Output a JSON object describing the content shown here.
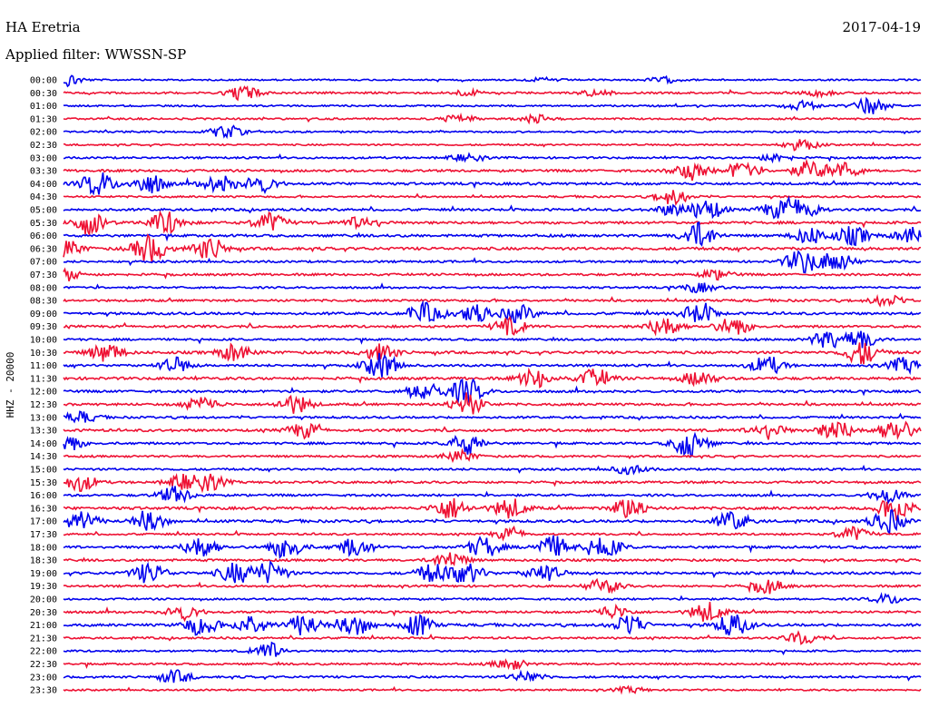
{
  "header": {
    "station": "HA Eretria",
    "date": "2017-04-19",
    "filter": "Applied filter: WWSSN-SP"
  },
  "chart_data": {
    "type": "line",
    "title": "HA Eretria",
    "subtitle": "Applied filter: WWSSN-SP",
    "date": "2017-04-19",
    "ylabel": "HHZ - 20000",
    "xlabel": "",
    "colors": [
      "#0000ee",
      "#ee1133"
    ],
    "rows": [
      {
        "label": "00:00",
        "activity": 0.15,
        "bursts": [
          [
            0.0,
            0.9
          ],
          [
            0.56,
            0.2
          ],
          [
            0.7,
            0.3
          ]
        ]
      },
      {
        "label": "00:30",
        "activity": 0.3,
        "bursts": [
          [
            0.21,
            0.8
          ],
          [
            0.47,
            0.3
          ],
          [
            0.62,
            0.3
          ],
          [
            0.88,
            0.3
          ]
        ]
      },
      {
        "label": "01:00",
        "activity": 0.2,
        "bursts": [
          [
            0.86,
            0.5
          ],
          [
            0.94,
            0.9
          ]
        ]
      },
      {
        "label": "01:30",
        "activity": 0.25,
        "bursts": [
          [
            0.46,
            0.4
          ],
          [
            0.55,
            0.4
          ]
        ]
      },
      {
        "label": "02:00",
        "activity": 0.2,
        "bursts": [
          [
            0.19,
            0.7
          ]
        ]
      },
      {
        "label": "02:30",
        "activity": 0.2,
        "bursts": [
          [
            0.86,
            0.6
          ]
        ]
      },
      {
        "label": "03:00",
        "activity": 0.3,
        "bursts": [
          [
            0.47,
            0.4
          ],
          [
            0.83,
            0.4
          ]
        ]
      },
      {
        "label": "03:30",
        "activity": 0.45,
        "bursts": [
          [
            0.73,
            1.0
          ],
          [
            0.79,
            0.9
          ],
          [
            0.87,
            1.0
          ],
          [
            0.91,
            0.8
          ]
        ]
      },
      {
        "label": "04:00",
        "activity": 0.5,
        "bursts": [
          [
            0.04,
            1.3
          ],
          [
            0.1,
            1.1
          ],
          [
            0.18,
            1.0
          ],
          [
            0.23,
            0.9
          ]
        ]
      },
      {
        "label": "04:30",
        "activity": 0.25,
        "bursts": [
          [
            0.71,
            0.8
          ]
        ]
      },
      {
        "label": "05:00",
        "activity": 0.45,
        "bursts": [
          [
            0.71,
            0.6
          ],
          [
            0.75,
            1.1
          ],
          [
            0.83,
            0.8
          ],
          [
            0.86,
            1.3
          ]
        ]
      },
      {
        "label": "05:30",
        "activity": 0.5,
        "bursts": [
          [
            0.03,
            1.3
          ],
          [
            0.12,
            1.2
          ],
          [
            0.24,
            1.1
          ],
          [
            0.35,
            0.8
          ]
        ]
      },
      {
        "label": "06:00",
        "activity": 0.5,
        "bursts": [
          [
            0.74,
            1.4
          ],
          [
            0.87,
            0.9
          ],
          [
            0.92,
            1.0
          ],
          [
            0.99,
            1.0
          ]
        ]
      },
      {
        "label": "06:30",
        "activity": 0.6,
        "bursts": [
          [
            0.0,
            1.0
          ],
          [
            0.1,
            1.5
          ],
          [
            0.17,
            1.2
          ]
        ]
      },
      {
        "label": "07:00",
        "activity": 0.35,
        "bursts": [
          [
            0.86,
            1.3
          ],
          [
            0.9,
            1.1
          ]
        ]
      },
      {
        "label": "07:30",
        "activity": 0.4,
        "bursts": [
          [
            0.0,
            0.7
          ],
          [
            0.76,
            0.5
          ]
        ]
      },
      {
        "label": "08:00",
        "activity": 0.3,
        "bursts": [
          [
            0.74,
            0.5
          ]
        ]
      },
      {
        "label": "08:30",
        "activity": 0.4,
        "bursts": [
          [
            0.96,
            0.6
          ]
        ]
      },
      {
        "label": "09:00",
        "activity": 0.5,
        "bursts": [
          [
            0.42,
            1.1
          ],
          [
            0.48,
            1.0
          ],
          [
            0.53,
            0.9
          ],
          [
            0.74,
            1.0
          ]
        ]
      },
      {
        "label": "09:30",
        "activity": 0.45,
        "bursts": [
          [
            0.52,
            0.9
          ],
          [
            0.7,
            1.0
          ],
          [
            0.78,
            1.0
          ]
        ]
      },
      {
        "label": "10:00",
        "activity": 0.35,
        "bursts": [
          [
            0.89,
            0.9
          ],
          [
            0.93,
            1.0
          ]
        ]
      },
      {
        "label": "10:30",
        "activity": 0.55,
        "bursts": [
          [
            0.05,
            1.0
          ],
          [
            0.2,
            0.9
          ],
          [
            0.37,
            0.9
          ],
          [
            0.93,
            1.3
          ]
        ]
      },
      {
        "label": "11:00",
        "activity": 0.4,
        "bursts": [
          [
            0.13,
            0.8
          ],
          [
            0.37,
            1.4
          ],
          [
            0.82,
            1.0
          ],
          [
            0.98,
            0.8
          ]
        ]
      },
      {
        "label": "11:30",
        "activity": 0.55,
        "bursts": [
          [
            0.55,
            1.0
          ],
          [
            0.62,
            1.0
          ],
          [
            0.74,
            0.8
          ]
        ]
      },
      {
        "label": "12:00",
        "activity": 0.45,
        "bursts": [
          [
            0.42,
            1.1
          ],
          [
            0.47,
            1.4
          ]
        ]
      },
      {
        "label": "12:30",
        "activity": 0.45,
        "bursts": [
          [
            0.16,
            0.9
          ],
          [
            0.27,
            1.0
          ],
          [
            0.47,
            1.2
          ]
        ]
      },
      {
        "label": "13:00",
        "activity": 0.35,
        "bursts": [
          [
            0.02,
            0.6
          ]
        ]
      },
      {
        "label": "13:30",
        "activity": 0.5,
        "bursts": [
          [
            0.28,
            0.8
          ],
          [
            0.82,
            1.0
          ],
          [
            0.9,
            1.1
          ],
          [
            0.97,
            1.3
          ]
        ]
      },
      {
        "label": "14:00",
        "activity": 0.4,
        "bursts": [
          [
            0.0,
            1.2
          ],
          [
            0.47,
            1.2
          ],
          [
            0.73,
            1.6
          ]
        ]
      },
      {
        "label": "14:30",
        "activity": 0.3,
        "bursts": [
          [
            0.46,
            0.6
          ]
        ]
      },
      {
        "label": "15:00",
        "activity": 0.35,
        "bursts": [
          [
            0.66,
            0.5
          ]
        ]
      },
      {
        "label": "15:30",
        "activity": 0.4,
        "bursts": [
          [
            0.02,
            0.9
          ],
          [
            0.14,
            0.8
          ],
          [
            0.17,
            0.8
          ]
        ]
      },
      {
        "label": "16:00",
        "activity": 0.4,
        "bursts": [
          [
            0.13,
            0.9
          ],
          [
            0.96,
            0.8
          ]
        ]
      },
      {
        "label": "16:30",
        "activity": 0.55,
        "bursts": [
          [
            0.45,
            1.2
          ],
          [
            0.52,
            1.1
          ],
          [
            0.66,
            1.2
          ],
          [
            0.97,
            1.4
          ]
        ]
      },
      {
        "label": "17:00",
        "activity": 0.5,
        "bursts": [
          [
            0.02,
            1.2
          ],
          [
            0.1,
            1.0
          ],
          [
            0.78,
            1.0
          ],
          [
            0.96,
            1.3
          ]
        ]
      },
      {
        "label": "17:30",
        "activity": 0.3,
        "bursts": [
          [
            0.52,
            0.6
          ],
          [
            0.92,
            0.8
          ]
        ]
      },
      {
        "label": "18:00",
        "activity": 0.5,
        "bursts": [
          [
            0.16,
            1.1
          ],
          [
            0.26,
            1.2
          ],
          [
            0.34,
            1.0
          ],
          [
            0.49,
            1.1
          ],
          [
            0.57,
            1.2
          ],
          [
            0.63,
            1.2
          ]
        ]
      },
      {
        "label": "18:30",
        "activity": 0.4,
        "bursts": [
          [
            0.45,
            0.9
          ]
        ]
      },
      {
        "label": "19:00",
        "activity": 0.5,
        "bursts": [
          [
            0.1,
            1.1
          ],
          [
            0.2,
            1.1
          ],
          [
            0.24,
            1.2
          ],
          [
            0.43,
            1.0
          ],
          [
            0.47,
            1.1
          ],
          [
            0.56,
            1.0
          ]
        ]
      },
      {
        "label": "19:30",
        "activity": 0.35,
        "bursts": [
          [
            0.63,
            0.8
          ],
          [
            0.82,
            0.8
          ]
        ]
      },
      {
        "label": "20:00",
        "activity": 0.3,
        "bursts": [
          [
            0.96,
            0.5
          ]
        ]
      },
      {
        "label": "20:30",
        "activity": 0.4,
        "bursts": [
          [
            0.14,
            0.8
          ],
          [
            0.64,
            0.7
          ],
          [
            0.75,
            1.1
          ]
        ]
      },
      {
        "label": "21:00",
        "activity": 0.5,
        "bursts": [
          [
            0.16,
            1.1
          ],
          [
            0.22,
            1.1
          ],
          [
            0.28,
            1.2
          ],
          [
            0.34,
            1.1
          ],
          [
            0.41,
            1.2
          ],
          [
            0.66,
            1.1
          ],
          [
            0.78,
            1.2
          ]
        ]
      },
      {
        "label": "21:30",
        "activity": 0.3,
        "bursts": [
          [
            0.86,
            0.6
          ]
        ]
      },
      {
        "label": "22:00",
        "activity": 0.25,
        "bursts": [
          [
            0.24,
            0.9
          ]
        ]
      },
      {
        "label": "22:30",
        "activity": 0.3,
        "bursts": [
          [
            0.52,
            0.6
          ]
        ]
      },
      {
        "label": "23:00",
        "activity": 0.35,
        "bursts": [
          [
            0.13,
            0.7
          ],
          [
            0.54,
            0.6
          ]
        ]
      },
      {
        "label": "23:30",
        "activity": 0.2,
        "bursts": [
          [
            0.66,
            0.3
          ]
        ]
      }
    ]
  }
}
